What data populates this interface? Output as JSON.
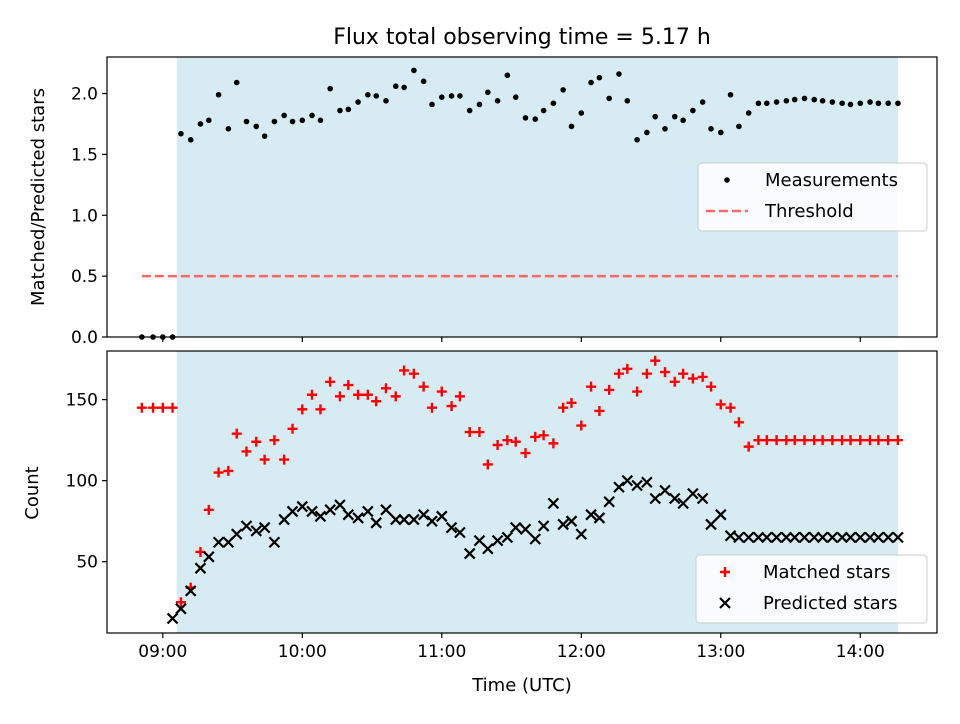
{
  "title": "Flux total observing time = 5.17 h",
  "xlabel": "Time (UTC)",
  "x_ticks": [
    "09:00",
    "10:00",
    "11:00",
    "12:00",
    "13:00",
    "14:00"
  ],
  "colors": {
    "shade": "#add8e6",
    "threshold": "#ff6666",
    "matched": "#ff0000",
    "predicted": "#000000",
    "measurements": "#000000"
  },
  "chart_data": [
    {
      "type": "scatter",
      "ylabel": "Matched/Predicted stars",
      "ylim": [
        0,
        2.3
      ],
      "yticks": [
        "0.0",
        "0.5",
        "1.0",
        "1.5",
        "2.0"
      ],
      "x_unit": "hours UTC",
      "shaded_interval": [
        9.1,
        14.27
      ],
      "legend": {
        "placement": "center-right",
        "entries": [
          "Measurements",
          "Threshold"
        ]
      },
      "threshold": {
        "name": "Threshold",
        "value": 0.5,
        "x": [
          8.85,
          14.27
        ]
      },
      "series": [
        {
          "name": "Measurements",
          "x": [
            8.85,
            8.93,
            9.0,
            9.07,
            9.13,
            9.2,
            9.27,
            9.33,
            9.4,
            9.47,
            9.53,
            9.6,
            9.67,
            9.73,
            9.8,
            9.87,
            9.93,
            10.0,
            10.07,
            10.13,
            10.2,
            10.27,
            10.33,
            10.4,
            10.47,
            10.53,
            10.6,
            10.67,
            10.73,
            10.8,
            10.87,
            10.93,
            11.0,
            11.07,
            11.13,
            11.2,
            11.27,
            11.33,
            11.4,
            11.47,
            11.53,
            11.6,
            11.67,
            11.73,
            11.8,
            11.87,
            11.93,
            12.0,
            12.07,
            12.13,
            12.2,
            12.27,
            12.33,
            12.4,
            12.47,
            12.53,
            12.6,
            12.67,
            12.73,
            12.8,
            12.87,
            12.93,
            13.0,
            13.07,
            13.13,
            13.2,
            13.27,
            13.33,
            13.4,
            13.47,
            13.53,
            13.6,
            13.67,
            13.73,
            13.8,
            13.87,
            13.93,
            14.0,
            14.07,
            14.13,
            14.2,
            14.27
          ],
          "y": [
            0.0,
            0.0,
            0.0,
            0.0,
            1.67,
            1.62,
            1.75,
            1.78,
            1.99,
            1.71,
            2.09,
            1.77,
            1.73,
            1.65,
            1.77,
            1.82,
            1.77,
            1.78,
            1.82,
            1.78,
            2.04,
            1.86,
            1.87,
            1.93,
            1.99,
            1.98,
            1.94,
            2.06,
            2.05,
            2.19,
            2.1,
            1.91,
            1.97,
            1.98,
            1.98,
            1.86,
            1.91,
            2.01,
            1.94,
            2.15,
            1.97,
            1.8,
            1.79,
            1.86,
            1.92,
            2.03,
            1.73,
            1.84,
            2.09,
            2.13,
            1.96,
            2.16,
            1.94,
            1.62,
            1.68,
            1.81,
            1.71,
            1.81,
            1.78,
            1.86,
            1.93,
            1.71,
            1.68,
            1.99,
            1.73,
            1.84,
            1.92,
            1.92,
            1.93,
            1.94,
            1.95,
            1.96,
            1.95,
            1.94,
            1.93,
            1.92,
            1.91,
            1.92,
            1.93,
            1.92,
            1.92,
            1.92
          ]
        }
      ]
    },
    {
      "type": "scatter",
      "ylabel": "Count",
      "ylim": [
        6,
        180
      ],
      "yticks": [
        "50",
        "100",
        "150"
      ],
      "x_unit": "hours UTC",
      "shaded_interval": [
        9.1,
        14.27
      ],
      "legend": {
        "placement": "bottom-right",
        "entries": [
          "Matched stars",
          "Predicted stars"
        ]
      },
      "series": [
        {
          "name": "Matched stars",
          "marker": "+",
          "x": [
            8.85,
            8.93,
            9.0,
            9.07,
            9.13,
            9.2,
            9.27,
            9.33,
            9.4,
            9.47,
            9.53,
            9.6,
            9.67,
            9.73,
            9.8,
            9.87,
            9.93,
            10.0,
            10.07,
            10.13,
            10.2,
            10.27,
            10.33,
            10.4,
            10.47,
            10.53,
            10.6,
            10.67,
            10.73,
            10.8,
            10.87,
            10.93,
            11.0,
            11.07,
            11.13,
            11.2,
            11.27,
            11.33,
            11.4,
            11.47,
            11.53,
            11.6,
            11.67,
            11.73,
            11.8,
            11.87,
            11.93,
            12.0,
            12.07,
            12.13,
            12.2,
            12.27,
            12.33,
            12.4,
            12.47,
            12.53,
            12.6,
            12.67,
            12.73,
            12.8,
            12.87,
            12.93,
            13.0,
            13.07,
            13.13,
            13.2,
            13.27,
            13.33,
            13.4,
            13.47,
            13.53,
            13.6,
            13.67,
            13.73,
            13.8,
            13.87,
            13.93,
            14.0,
            14.07,
            14.13,
            14.2,
            14.27
          ],
          "y": [
            145,
            145,
            145,
            145,
            25,
            34,
            56,
            82,
            105,
            106,
            129,
            118,
            124,
            113,
            125,
            113,
            132,
            144,
            153,
            144,
            161,
            152,
            159,
            153,
            153,
            149,
            157,
            152,
            168,
            166,
            158,
            145,
            155,
            146,
            152,
            130,
            130,
            110,
            122,
            125,
            124,
            117,
            127,
            128,
            123,
            145,
            148,
            134,
            158,
            143,
            156,
            166,
            169,
            155,
            166,
            174,
            167,
            161,
            166,
            163,
            164,
            158,
            147,
            145,
            136,
            121,
            125,
            125,
            125,
            125,
            125,
            125,
            125,
            125,
            125,
            125,
            125,
            125,
            125,
            125,
            125,
            125
          ]
        },
        {
          "name": "Predicted stars",
          "marker": "x",
          "x": [
            9.07,
            9.13,
            9.2,
            9.27,
            9.33,
            9.4,
            9.47,
            9.53,
            9.6,
            9.67,
            9.73,
            9.8,
            9.87,
            9.93,
            10.0,
            10.07,
            10.13,
            10.2,
            10.27,
            10.33,
            10.4,
            10.47,
            10.53,
            10.6,
            10.67,
            10.73,
            10.8,
            10.87,
            10.93,
            11.0,
            11.07,
            11.13,
            11.2,
            11.27,
            11.33,
            11.4,
            11.47,
            11.53,
            11.6,
            11.67,
            11.73,
            11.8,
            11.87,
            11.93,
            12.0,
            12.07,
            12.13,
            12.2,
            12.27,
            12.33,
            12.4,
            12.47,
            12.53,
            12.6,
            12.67,
            12.73,
            12.8,
            12.87,
            12.93,
            13.0,
            13.07,
            13.13,
            13.2,
            13.27,
            13.33,
            13.4,
            13.47,
            13.53,
            13.6,
            13.67,
            13.73,
            13.8,
            13.87,
            13.93,
            14.0,
            14.07,
            14.13,
            14.2,
            14.27
          ],
          "y": [
            15,
            21,
            32,
            46,
            53,
            62,
            62,
            67,
            72,
            69,
            71,
            62,
            76,
            81,
            84,
            81,
            78,
            82,
            85,
            79,
            77,
            81,
            74,
            82,
            76,
            76,
            76,
            79,
            75,
            78,
            71,
            68,
            55,
            63,
            58,
            63,
            65,
            71,
            70,
            64,
            72,
            86,
            73,
            75,
            67,
            79,
            77,
            87,
            96,
            100,
            97,
            99,
            89,
            94,
            89,
            86,
            92,
            89,
            73,
            79,
            66,
            65,
            65,
            65,
            65,
            65,
            65,
            65,
            65,
            65,
            65,
            65,
            65,
            65,
            65,
            65,
            65,
            65,
            65
          ]
        }
      ]
    }
  ]
}
